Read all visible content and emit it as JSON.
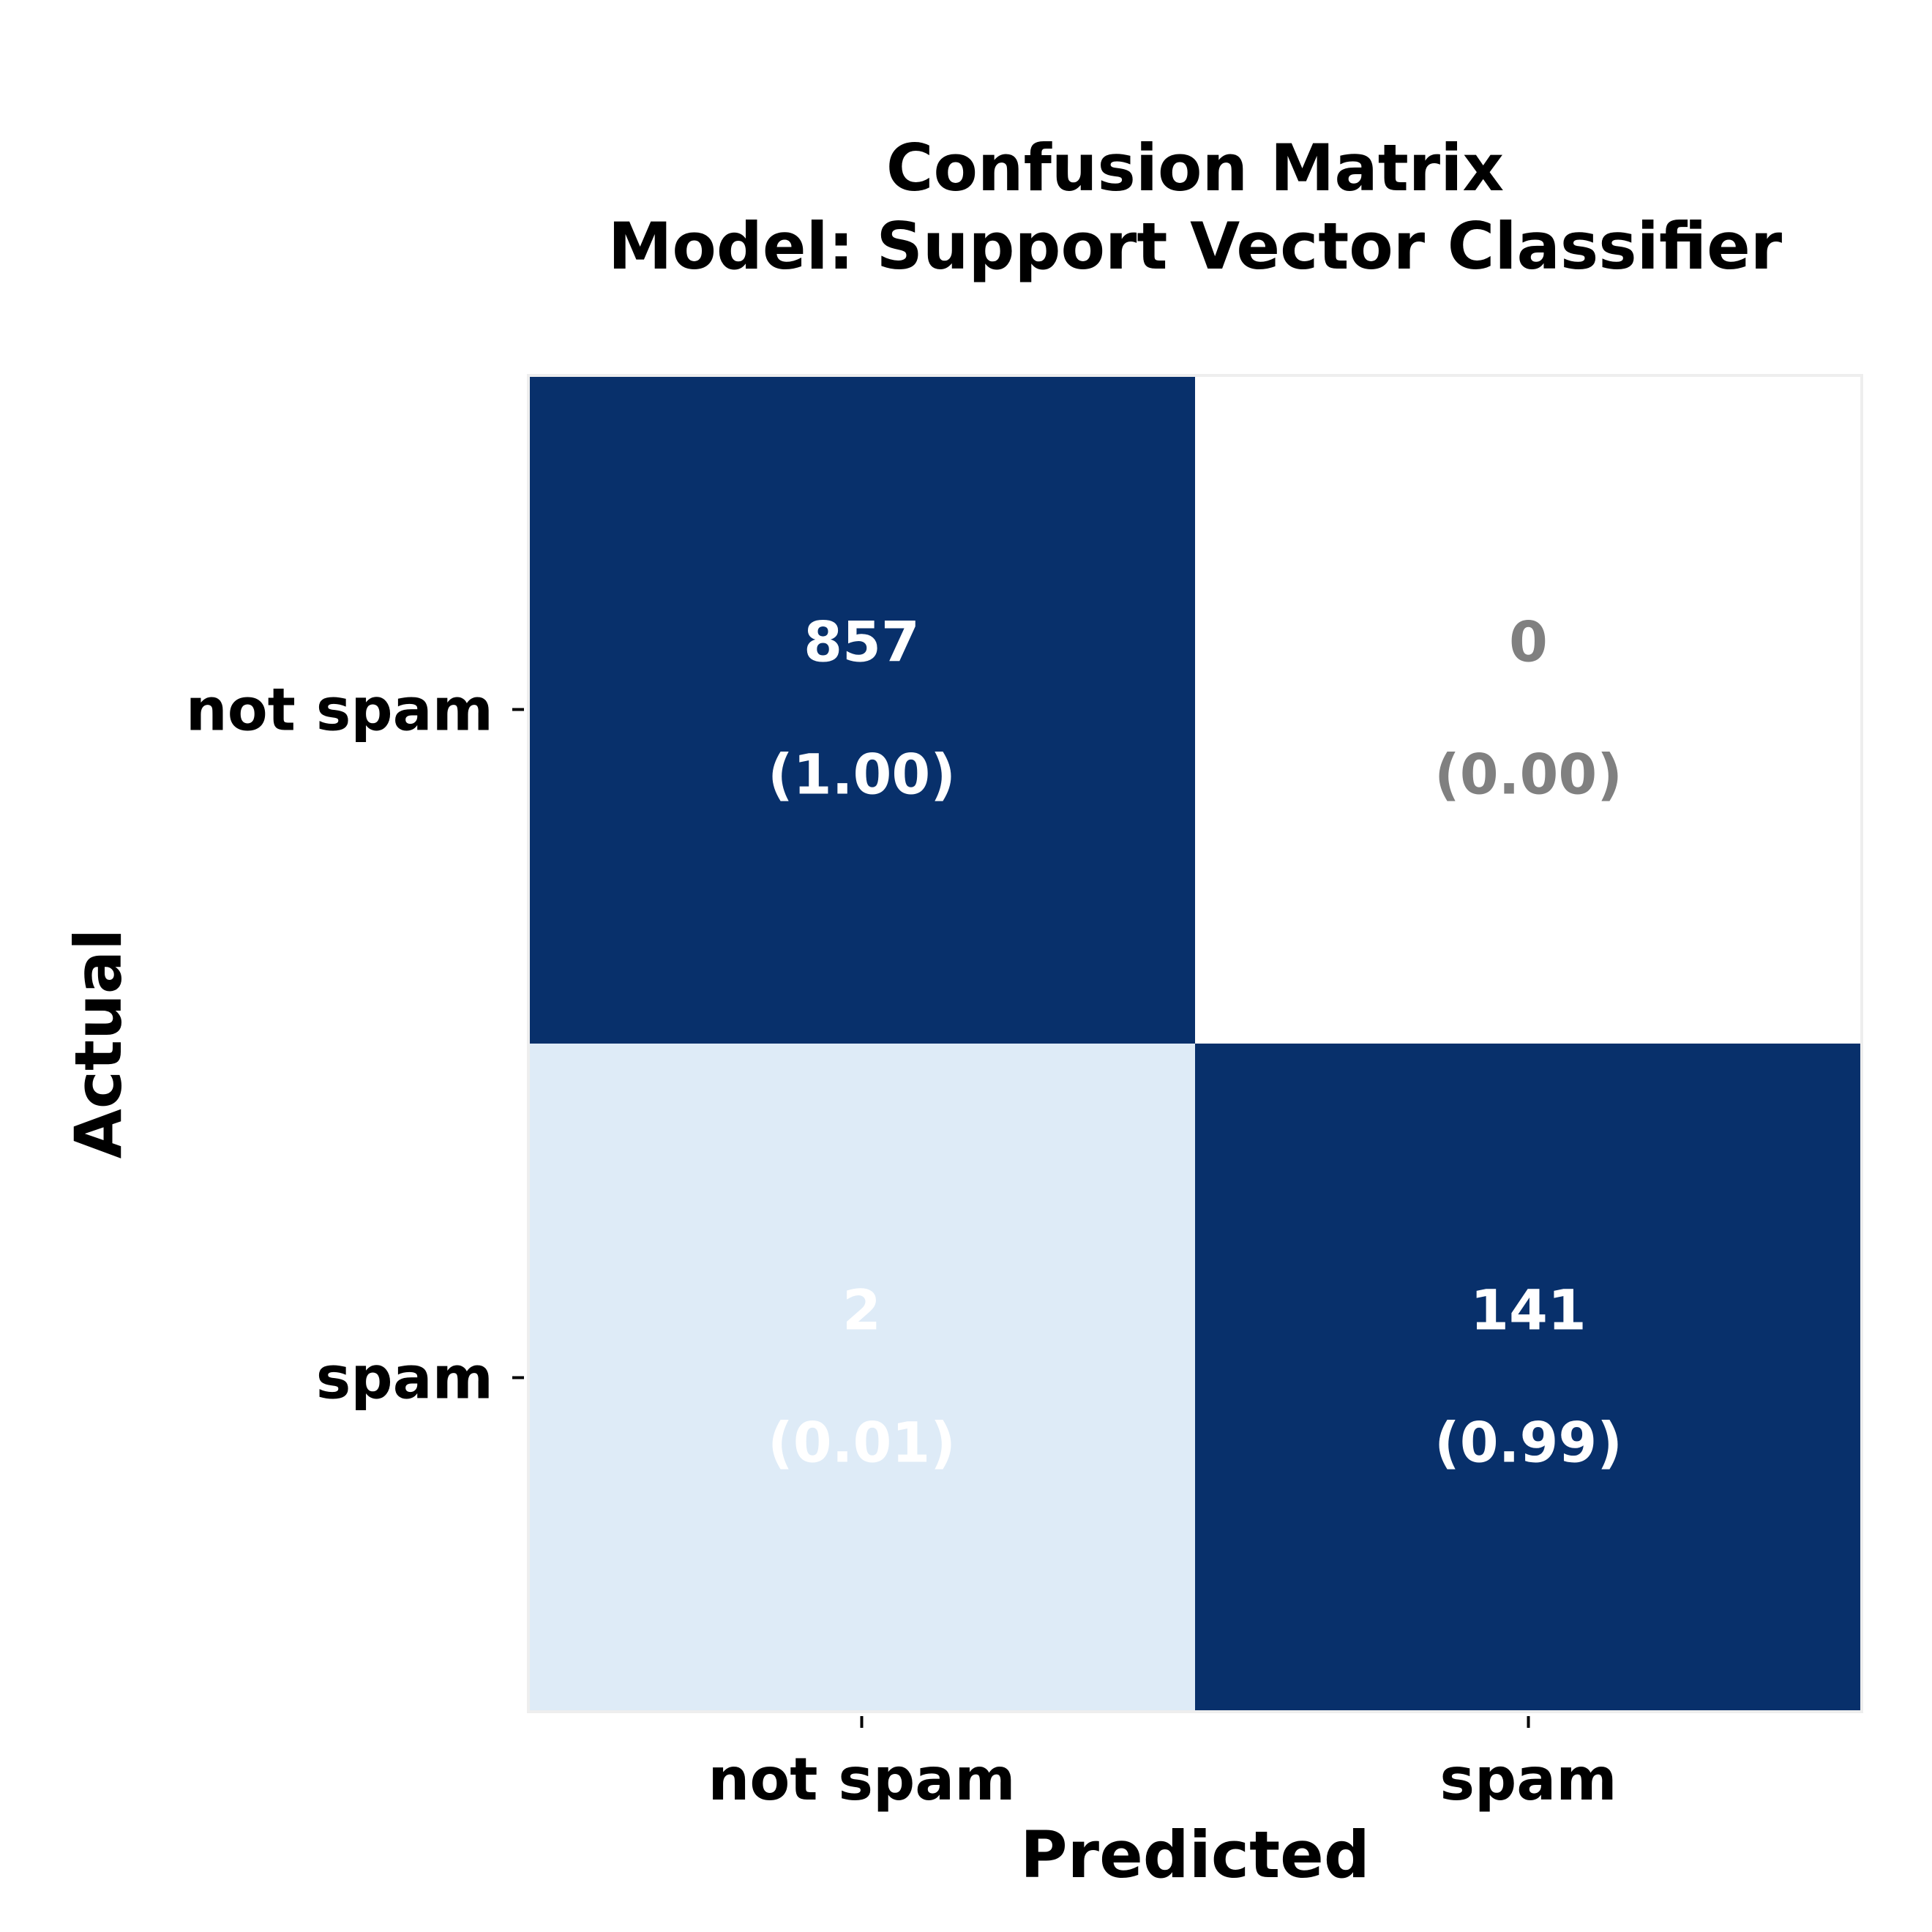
{
  "chart_data": {
    "type": "heatmap",
    "title_lines": [
      "Confusion Matrix",
      "Model: Support Vector Classifier"
    ],
    "xlabel": "Predicted",
    "ylabel": "Actual",
    "x_categories": [
      "not spam",
      "spam"
    ],
    "y_categories": [
      "not spam",
      "spam"
    ],
    "counts": [
      [
        857,
        0
      ],
      [
        2,
        141
      ]
    ],
    "normalized": [
      [
        1.0,
        0.0
      ],
      [
        0.01,
        0.99
      ]
    ],
    "cell_labels": [
      [
        "857",
        "0"
      ],
      [
        "2",
        "141"
      ]
    ],
    "cell_sublabels": [
      [
        "(1.00)",
        "(0.00)"
      ],
      [
        "(0.01)",
        "(0.99)"
      ]
    ],
    "cell_colors": [
      [
        "#08306b",
        "#ffffff"
      ],
      [
        "#deebf7",
        "#08306b"
      ]
    ],
    "text_colors": [
      [
        "#ffffff",
        "#808080"
      ],
      [
        "#ffffff",
        "#ffffff"
      ]
    ],
    "colormap": "Blues",
    "colorbar": false
  }
}
